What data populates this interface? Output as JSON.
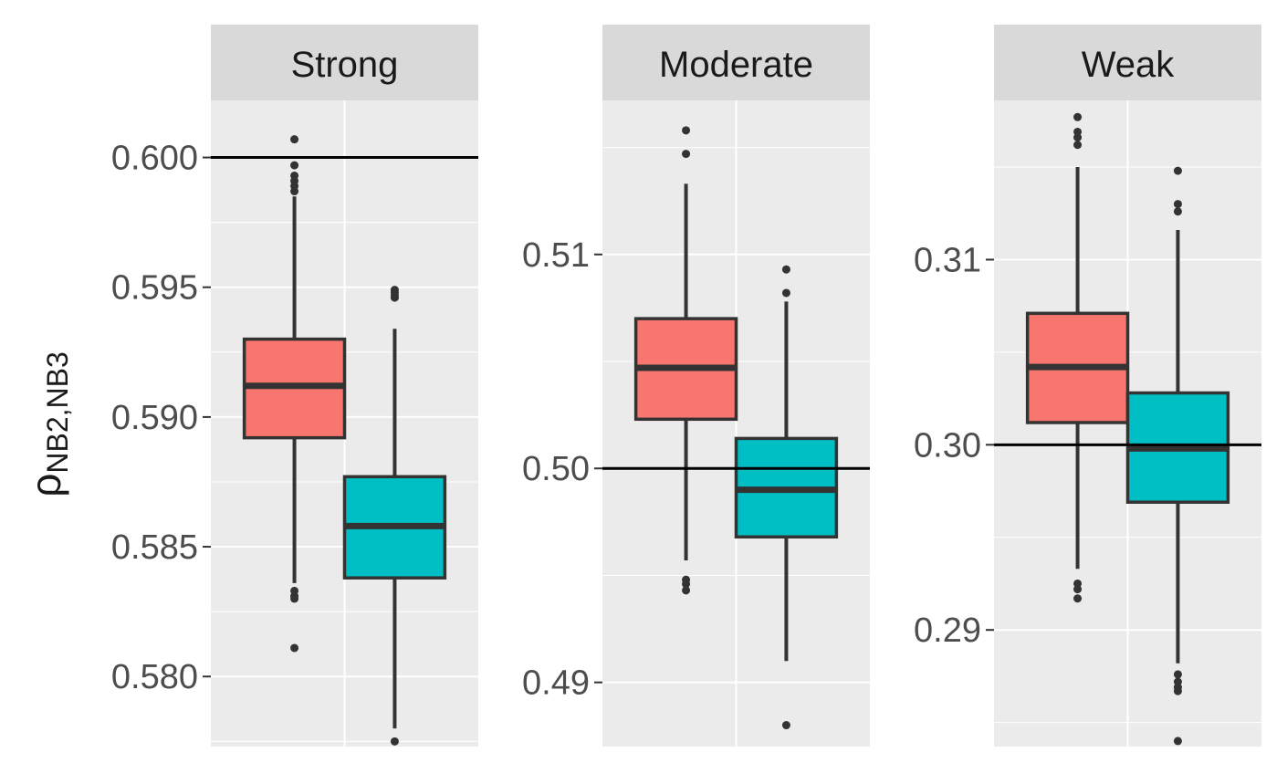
{
  "chart_data": {
    "type": "boxplot",
    "ylabel": "ρNB2,NB3",
    "ylabel_parts": {
      "symbol": "ρ",
      "subscript": "NB2,NB3"
    },
    "colors": {
      "series1": "#F8766D",
      "series2": "#00BFC4",
      "panel_bg": "#EBEBEB",
      "strip_bg": "#D9D9D9",
      "line": "#333333"
    },
    "legend": "none",
    "grid": true,
    "panels": [
      {
        "title": "Strong",
        "reference_line": 0.6,
        "ylim": [
          0.5773,
          0.6022
        ],
        "yticks": [
          "0.580",
          "0.585",
          "0.590",
          "0.595",
          "0.600"
        ],
        "boxes": [
          {
            "q1": 0.5892,
            "median": 0.5912,
            "q3": 0.593,
            "whisker_low": 0.5836,
            "whisker_high": 0.5985,
            "outliers": [
              0.6007,
              0.5997,
              0.5993,
              0.5991,
              0.5989,
              0.5987,
              0.5833,
              0.5831,
              0.583,
              0.5811
            ]
          },
          {
            "q1": 0.5838,
            "median": 0.5858,
            "q3": 0.5877,
            "whisker_low": 0.578,
            "whisker_high": 0.5934,
            "outliers": [
              0.5949,
              0.5948,
              0.5947,
              0.5946,
              0.5775
            ]
          }
        ]
      },
      {
        "title": "Moderate",
        "reference_line": 0.5,
        "ylim": [
          0.487,
          0.5172
        ],
        "yticks": [
          "0.49",
          "0.50",
          "0.51"
        ],
        "boxes": [
          {
            "q1": 0.5023,
            "median": 0.5047,
            "q3": 0.507,
            "whisker_low": 0.4957,
            "whisker_high": 0.5133,
            "outliers": [
              0.5158,
              0.5147,
              0.4948,
              0.4946,
              0.4943
            ]
          },
          {
            "q1": 0.4968,
            "median": 0.499,
            "q3": 0.5014,
            "whisker_low": 0.491,
            "whisker_high": 0.5078,
            "outliers": [
              0.5093,
              0.5082,
              0.488
            ]
          }
        ]
      },
      {
        "title": "Weak",
        "reference_line": 0.3,
        "ylim": [
          0.2837,
          0.3186
        ],
        "yticks": [
          "0.29",
          "0.30",
          "0.31"
        ],
        "boxes": [
          {
            "q1": 0.3012,
            "median": 0.3042,
            "q3": 0.3071,
            "whisker_low": 0.2933,
            "whisker_high": 0.315,
            "outliers": [
              0.3177,
              0.3169,
              0.3166,
              0.3162,
              0.2925,
              0.2922,
              0.2917
            ]
          },
          {
            "q1": 0.2969,
            "median": 0.2998,
            "q3": 0.3028,
            "whisker_low": 0.2882,
            "whisker_high": 0.3116,
            "outliers": [
              0.3148,
              0.313,
              0.3126,
              0.2876,
              0.2872,
              0.2869,
              0.2867,
              0.284
            ]
          }
        ]
      }
    ]
  }
}
